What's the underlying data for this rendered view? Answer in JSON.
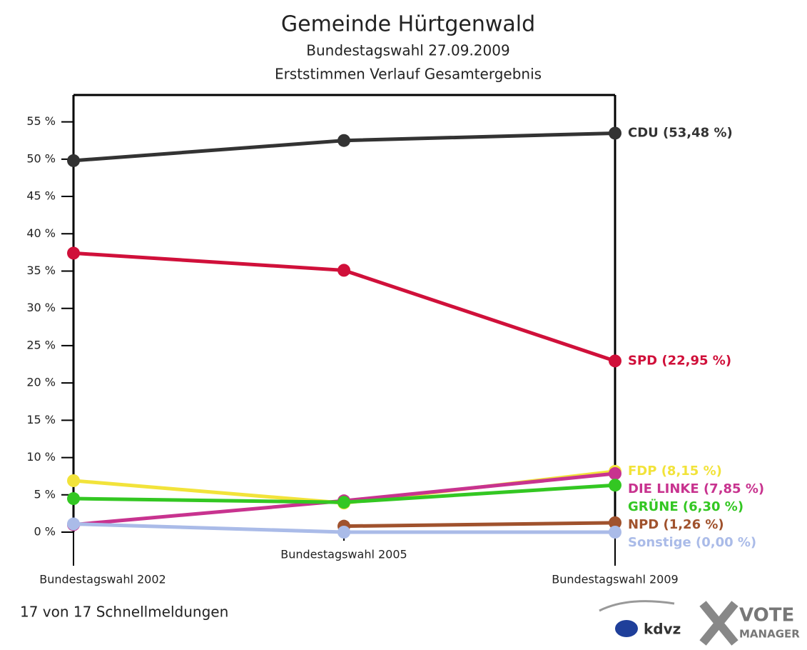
{
  "chart_data": {
    "type": "line",
    "title": "Gemeinde Hürtgenwald",
    "subtitle": [
      "Bundestagswahl 27.09.2009",
      "Erststimmen Verlauf Gesamtergebnis"
    ],
    "categories": [
      "Bundestagswahl 2002",
      "Bundestagswahl 2005",
      "Bundestagswahl 2009"
    ],
    "ylim": [
      0,
      58.6
    ],
    "yticks": [
      {
        "value": 0,
        "label": "0 %"
      },
      {
        "value": 5,
        "label": "5 %"
      },
      {
        "value": 10,
        "label": "10 %"
      },
      {
        "value": 15,
        "label": "15 %"
      },
      {
        "value": 20,
        "label": "20 %"
      },
      {
        "value": 25,
        "label": "25 %"
      },
      {
        "value": 30,
        "label": "30 %"
      },
      {
        "value": 35,
        "label": "35 %"
      },
      {
        "value": 40,
        "label": "40 %"
      },
      {
        "value": 45,
        "label": "45 %"
      },
      {
        "value": 50,
        "label": "50 %"
      },
      {
        "value": 55,
        "label": "55 %"
      }
    ],
    "series": [
      {
        "name": "CDU",
        "color": "#333333",
        "values": [
          49.8,
          52.5,
          53.48
        ],
        "value_labels": [
          null,
          null,
          "CDU (53,48 %)"
        ]
      },
      {
        "name": "SPD",
        "color": "#d0103a",
        "values": [
          37.4,
          35.1,
          22.95
        ],
        "value_labels": [
          null,
          null,
          "SPD (22,95 %)"
        ]
      },
      {
        "name": "FDP",
        "color": "#f2e33a",
        "values": [
          6.9,
          3.9,
          8.15
        ],
        "value_labels": [
          null,
          null,
          "FDP (8,15 %)"
        ]
      },
      {
        "name": "DIE LINKE",
        "color": "#c8338f",
        "values": [
          1.0,
          4.2,
          7.85
        ],
        "value_labels": [
          null,
          null,
          "DIE LINKE (7,85 %)"
        ]
      },
      {
        "name": "GRÜNE",
        "color": "#33c722",
        "values": [
          4.5,
          4.0,
          6.3
        ],
        "value_labels": [
          null,
          null,
          "GRÜNE (6,30 %)"
        ]
      },
      {
        "name": "NPD",
        "color": "#a0522d",
        "values": [
          null,
          0.8,
          1.26
        ],
        "value_labels": [
          null,
          null,
          "NPD (1,26 %)"
        ]
      },
      {
        "name": "Sonstige",
        "color": "#aabbe8",
        "values": [
          1.1,
          0.0,
          0.0
        ],
        "value_labels": [
          null,
          null,
          "Sonstige (0,00 %)"
        ]
      }
    ],
    "footer": "17 von 17 Schnellmeldungen",
    "logos": [
      "kdvz",
      "VOTE",
      "MANAGER"
    ]
  }
}
